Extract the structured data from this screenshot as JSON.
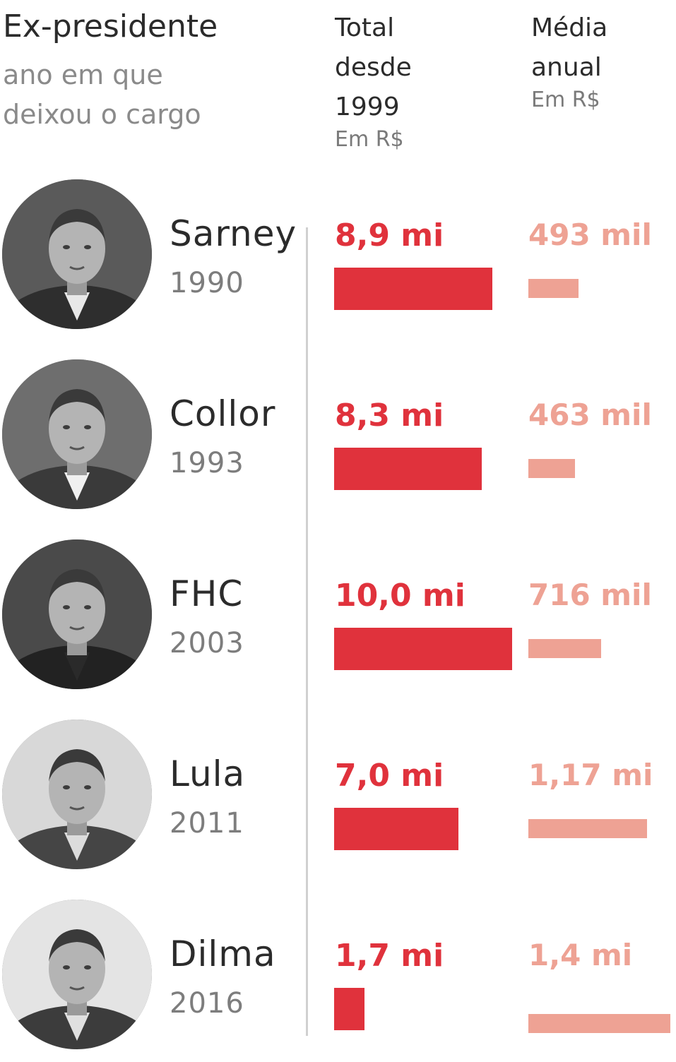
{
  "header": {
    "title": "Ex-presidente",
    "subtitle_line1": "ano em que",
    "subtitle_line2": "deixou o cargo",
    "col_total_line1": "Total",
    "col_total_line2": "desde",
    "col_total_line3": "1999",
    "col_total_unit": "Em R$",
    "col_media_line1": "Média",
    "col_media_line2": "anual",
    "col_media_unit": "Em R$"
  },
  "colors": {
    "total_bar": "#e0323c",
    "media_bar": "#eea294"
  },
  "rows": [
    {
      "name": "Sarney",
      "year": "1990",
      "total_label": "8,9 mi",
      "media_label": "493 mil"
    },
    {
      "name": "Collor",
      "year": "1993",
      "total_label": "8,3 mi",
      "media_label": "463 mil"
    },
    {
      "name": "FHC",
      "year": "2003",
      "total_label": "10,0 mi",
      "media_label": "716 mil"
    },
    {
      "name": "Lula",
      "year": "2011",
      "total_label": "7,0 mi",
      "media_label": "1,17 mi"
    },
    {
      "name": "Dilma",
      "year": "2016",
      "total_label": "1,7 mi",
      "media_label": "1,4 mi"
    }
  ],
  "chart_data": {
    "type": "bar",
    "categories": [
      "Sarney",
      "Collor",
      "FHC",
      "Lula",
      "Dilma"
    ],
    "series": [
      {
        "name": "Total desde 1999",
        "values": [
          8.9,
          8.3,
          10.0,
          7.0,
          1.7
        ],
        "unit": "milhões de R$"
      },
      {
        "name": "Média anual",
        "values": [
          0.493,
          0.463,
          0.716,
          1.17,
          1.4
        ],
        "unit": "milhões de R$"
      }
    ]
  }
}
